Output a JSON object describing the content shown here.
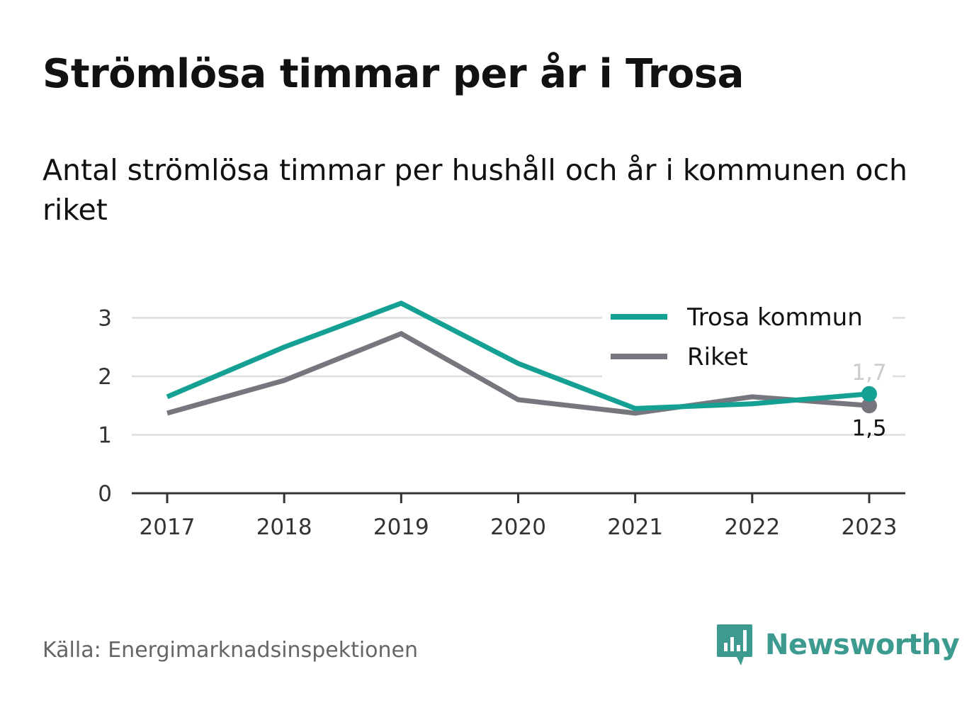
{
  "title": "Strömlösa timmar per år i Trosa",
  "subtitle": "Antal strömlösa timmar per hushåll och år i kommunen och riket",
  "source": "Källa: Energimarknadsinspektionen",
  "brand": {
    "name": "Newsworthy",
    "icon": "newsworthy-logo-icon",
    "color": "#3d9a8f"
  },
  "chart_data": {
    "type": "line",
    "x": [
      "2017",
      "2018",
      "2019",
      "2020",
      "2021",
      "2022",
      "2023"
    ],
    "ylim": [
      0,
      3.5
    ],
    "yticks": [
      "0",
      "1",
      "2",
      "3"
    ],
    "grid": true,
    "legend_position": "top-right",
    "series": [
      {
        "name": "Trosa kommun",
        "color": "#14a093",
        "values": [
          1.65,
          2.5,
          3.25,
          2.22,
          1.45,
          1.53,
          1.7
        ],
        "end_label": "1,7"
      },
      {
        "name": "Riket",
        "color": "#76767e",
        "values": [
          1.37,
          1.93,
          2.73,
          1.6,
          1.37,
          1.65,
          1.5
        ],
        "end_label": "1,5"
      }
    ]
  }
}
